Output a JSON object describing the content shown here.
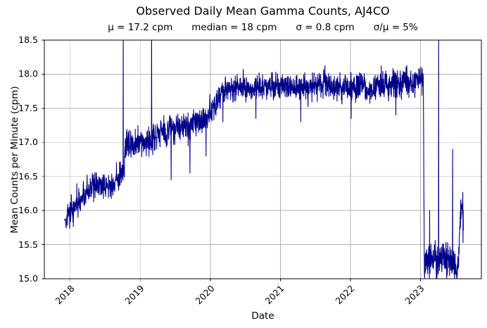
{
  "chart_data": {
    "type": "line",
    "title": "Observed Daily Mean Gamma Counts, AJ4CO",
    "stats": [
      "μ = 17.2 cpm",
      "median = 18 cpm",
      "σ = 0.8 cpm",
      "σ/μ = 5%"
    ],
    "stats_values": {
      "mean_cpm": 17.2,
      "median_cpm": 18,
      "sigma_cpm": 0.8,
      "cv_percent": 5
    },
    "xlabel": "Date",
    "ylabel": "Mean Counts per Minute (cpm)",
    "x_tick_labels": [
      "2018",
      "2019",
      "2020",
      "2021",
      "2022",
      "2023"
    ],
    "x_tick_years": [
      2018,
      2019,
      2020,
      2021,
      2022,
      2023
    ],
    "y_ticks": [
      15.0,
      15.5,
      16.0,
      16.5,
      17.0,
      17.5,
      18.0,
      18.5
    ],
    "ylim": [
      15.0,
      18.5
    ],
    "xlim_years": [
      2017.63,
      2023.87
    ],
    "grid": true,
    "legend": "none",
    "line_color": "#00008B",
    "grid_color": "#b0b0b0",
    "axis_color": "#000000",
    "background": "#ffffff",
    "series": {
      "name": "daily mean gamma counts (cpm)",
      "cadence": "daily",
      "start_year": 2017.921,
      "end_year": 2023.615,
      "trend_keypoints": [
        [
          2017.92,
          15.8
        ],
        [
          2018.0,
          15.95
        ],
        [
          2018.08,
          16.05
        ],
        [
          2018.17,
          16.18
        ],
        [
          2018.27,
          16.3
        ],
        [
          2018.38,
          16.42
        ],
        [
          2018.46,
          16.4
        ],
        [
          2018.52,
          16.32
        ],
        [
          2018.6,
          16.38
        ],
        [
          2018.68,
          16.48
        ],
        [
          2018.76,
          16.58
        ],
        [
          2018.79,
          16.95
        ],
        [
          2018.9,
          17.0
        ],
        [
          2019.05,
          17.02
        ],
        [
          2019.25,
          17.1
        ],
        [
          2019.5,
          17.17
        ],
        [
          2019.75,
          17.25
        ],
        [
          2019.95,
          17.35
        ],
        [
          2020.02,
          17.45
        ],
        [
          2020.1,
          17.6
        ],
        [
          2020.18,
          17.75
        ],
        [
          2020.3,
          17.8
        ],
        [
          2021.0,
          17.8
        ],
        [
          2022.0,
          17.82
        ],
        [
          2022.8,
          17.84
        ],
        [
          2023.0,
          17.9
        ],
        [
          2023.04,
          18.0
        ],
        [
          2023.055,
          15.3
        ],
        [
          2023.15,
          15.28
        ],
        [
          2023.3,
          15.3
        ],
        [
          2023.45,
          15.28
        ],
        [
          2023.5,
          15.15
        ],
        [
          2023.53,
          15.1
        ],
        [
          2023.555,
          15.55
        ],
        [
          2023.575,
          16.05
        ],
        [
          2023.59,
          15.95
        ],
        [
          2023.605,
          16.0
        ],
        [
          2023.615,
          15.9
        ]
      ],
      "noise_segments": [
        {
          "t0": 2017.9,
          "t1": 2020.2,
          "amp": 0.2
        },
        {
          "t0": 2020.2,
          "t1": 2023.04,
          "amp": 0.19
        },
        {
          "t0": 2023.04,
          "t1": 2023.55,
          "amp": 0.24
        },
        {
          "t0": 2023.55,
          "t1": 2023.62,
          "amp": 0.33
        }
      ],
      "anomalies": [
        {
          "t": 2018.755,
          "v": 18.7
        },
        {
          "t": 2019.16,
          "v": 18.7
        },
        {
          "t": 2019.44,
          "v": 16.45
        },
        {
          "t": 2019.71,
          "v": 16.55
        },
        {
          "t": 2019.94,
          "v": 16.8
        },
        {
          "t": 2020.18,
          "v": 17.3
        },
        {
          "t": 2020.65,
          "v": 17.35
        },
        {
          "t": 2021.29,
          "v": 17.3
        },
        {
          "t": 2022.01,
          "v": 17.35
        },
        {
          "t": 2022.65,
          "v": 17.4
        },
        {
          "t": 2023.13,
          "v": 16.0
        },
        {
          "t": 2023.26,
          "v": 18.7
        },
        {
          "t": 2023.46,
          "v": 16.9
        }
      ]
    }
  }
}
